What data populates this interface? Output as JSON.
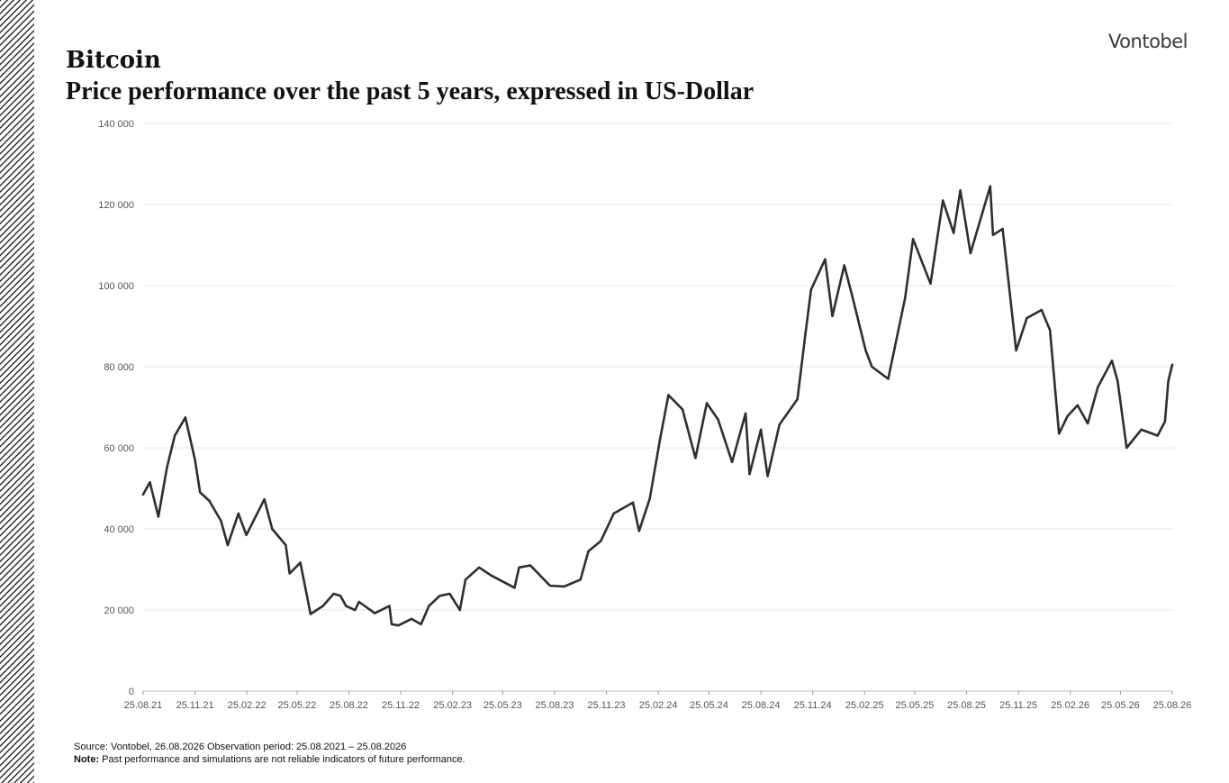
{
  "brand": "Vontobel",
  "title": "Bitcoin",
  "subtitle": "Price performance over the past 5 years, expressed in US-Dollar",
  "source": "Source: Vontobel, 26.08.2026 Observation period: 25.08.2021 – 25.08.2026",
  "note_label": "Note:",
  "note_text": " Past performance and simulations are not reliable indicators of future performance.",
  "colors": {
    "line": "#2e2e2e",
    "grid": "#e6e6e6",
    "axis_text": "#555555"
  },
  "chart_data": {
    "type": "line",
    "title": "Bitcoin",
    "subtitle": "Price performance over the past 5 years, expressed in US-Dollar",
    "ylim": [
      0,
      140000
    ],
    "yticks": [
      0,
      20000,
      40000,
      60000,
      80000,
      100000,
      120000,
      140000
    ],
    "ytick_labels": [
      "0",
      "20 000",
      "40 000",
      "60 000",
      "80 000",
      "100 000",
      "120 000",
      "140 000"
    ],
    "xticks": [
      "25.08.21",
      "25.11.21",
      "25.02.22",
      "25.05.22",
      "25.08.22",
      "25.11.22",
      "25.02.23",
      "25.05.23",
      "25.08.23",
      "25.11.23",
      "25.02.24",
      "25.05.24",
      "25.08.24",
      "25.11.24",
      "25.02.25",
      "25.05.25",
      "25.08.25",
      "25.11.25",
      "25.02.26",
      "25.05.26",
      "25.08.26"
    ],
    "grid": true,
    "legend": "none",
    "series": [
      {
        "x": [
          "2021-08-25",
          "2021-09-06",
          "2021-09-21",
          "2021-10-06",
          "2021-10-20",
          "2021-11-08",
          "2021-11-25",
          "2021-12-04",
          "2021-12-20",
          "2022-01-10",
          "2022-01-22",
          "2022-02-10",
          "2022-02-24",
          "2022-03-28",
          "2022-04-11",
          "2022-05-05",
          "2022-05-12",
          "2022-05-31",
          "2022-06-13",
          "2022-06-18",
          "2022-07-10",
          "2022-07-29",
          "2022-08-10",
          "2022-08-20",
          "2022-09-05",
          "2022-09-12",
          "2022-10-10",
          "2022-11-05",
          "2022-11-09",
          "2022-11-21",
          "2022-12-14",
          "2022-12-31",
          "2023-01-14",
          "2023-02-02",
          "2023-02-20",
          "2023-03-10",
          "2023-03-20",
          "2023-04-13",
          "2023-05-05",
          "2023-06-15",
          "2023-06-23",
          "2023-07-13",
          "2023-08-17",
          "2023-09-11",
          "2023-10-10",
          "2023-10-24",
          "2023-11-15",
          "2023-12-08",
          "2024-01-11",
          "2024-01-22",
          "2024-02-10",
          "2024-02-28",
          "2024-03-14",
          "2024-04-08",
          "2024-05-01",
          "2024-05-21",
          "2024-06-10",
          "2024-07-05",
          "2024-07-29",
          "2024-08-05",
          "2024-08-25",
          "2024-09-06",
          "2024-09-27",
          "2024-10-29",
          "2024-11-12",
          "2024-11-22",
          "2024-12-17",
          "2024-12-30",
          "2025-01-20",
          "2025-02-03",
          "2025-02-27",
          "2025-03-10",
          "2025-04-08",
          "2025-05-08",
          "2025-05-22",
          "2025-06-22",
          "2025-07-14",
          "2025-08-02",
          "2025-08-14",
          "2025-09-01",
          "2025-10-06",
          "2025-10-11",
          "2025-10-28",
          "2025-11-21",
          "2025-12-10",
          "2026-01-05",
          "2026-01-20",
          "2026-02-05",
          "2026-02-20",
          "2026-03-10",
          "2026-03-28",
          "2026-04-15",
          "2026-05-10",
          "2026-05-20",
          "2026-06-05",
          "2026-07-01",
          "2026-07-30",
          "2026-08-12",
          "2026-08-18",
          "2026-08-25"
        ],
        "y": [
          48500,
          51500,
          43000,
          55000,
          63000,
          67500,
          57000,
          49000,
          47000,
          42000,
          36000,
          43800,
          38500,
          47300,
          40000,
          36000,
          29000,
          31700,
          22500,
          19000,
          21000,
          24000,
          23500,
          21000,
          20000,
          22000,
          19200,
          21000,
          16500,
          16200,
          17800,
          16500,
          21000,
          23500,
          24000,
          20000,
          27500,
          30500,
          28500,
          25500,
          30500,
          31000,
          26000,
          25800,
          27500,
          34500,
          37000,
          43800,
          46500,
          39500,
          47500,
          62000,
          73000,
          69500,
          57500,
          71000,
          67000,
          56500,
          68500,
          53500,
          64500,
          53000,
          65700,
          72000,
          88000,
          99000,
          106500,
          92500,
          105000,
          97500,
          84000,
          80000,
          77000,
          97000,
          111500,
          100500,
          121000,
          113000,
          123500,
          108000,
          124500,
          112500,
          114000,
          84000,
          92000,
          94000,
          89000,
          63500,
          67800,
          70500,
          66000,
          75000,
          81500,
          76500,
          60000,
          64500,
          63000,
          66500,
          76500,
          80500
        ],
        "date_labels": [
          "25.08.21",
          "06.09.21",
          "21.09.21",
          "06.10.21",
          "20.10.21",
          "08.11.21",
          "25.11.21",
          "04.12.21",
          "20.12.21",
          "10.01.22",
          "22.01.22",
          "10.02.22",
          "24.02.22",
          "28.03.22",
          "11.04.22",
          "05.05.22",
          "12.05.22",
          "31.05.22",
          "13.06.22",
          "18.06.22",
          "10.07.22",
          "29.07.22",
          "10.08.22",
          "20.08.22",
          "05.09.22",
          "12.09.22",
          "10.10.22",
          "05.11.22",
          "09.11.22",
          "21.11.22",
          "14.12.22",
          "31.12.22",
          "14.01.23",
          "02.02.23",
          "20.02.23",
          "10.03.23",
          "20.03.23",
          "13.04.23",
          "05.05.23",
          "15.06.23",
          "23.06.23",
          "13.07.23",
          "17.08.23",
          "11.09.23",
          "10.10.23",
          "24.10.23",
          "15.11.23",
          "08.12.23",
          "11.01.24",
          "22.01.24",
          "10.02.24",
          "28.02.24",
          "14.03.24",
          "08.04.24",
          "01.05.24",
          "21.05.24",
          "10.06.24",
          "05.07.24",
          "29.07.24",
          "05.08.24",
          "25.08.24",
          "06.09.24",
          "27.09.24",
          "29.10.24",
          "12.11.24",
          "22.11.24",
          "17.12.24",
          "30.12.24",
          "20.01.25",
          "03.02.25",
          "27.02.25",
          "10.03.25",
          "08.04.25",
          "08.05.25",
          "22.05.25",
          "22.06.25",
          "14.07.25",
          "02.08.25",
          "14.08.25",
          "01.09.25",
          "06.10.25",
          "11.10.25",
          "28.10.25",
          "21.11.25",
          "10.12.25",
          "05.01.26",
          "20.01.26",
          "05.02.26",
          "20.02.26",
          "10.03.26",
          "28.03.26",
          "15.04.26",
          "10.05.26",
          "20.05.26",
          "05.06.26",
          "01.07.26",
          "30.07.26",
          "12.08.26",
          "18.08.26",
          "25.08.26"
        ]
      }
    ]
  }
}
